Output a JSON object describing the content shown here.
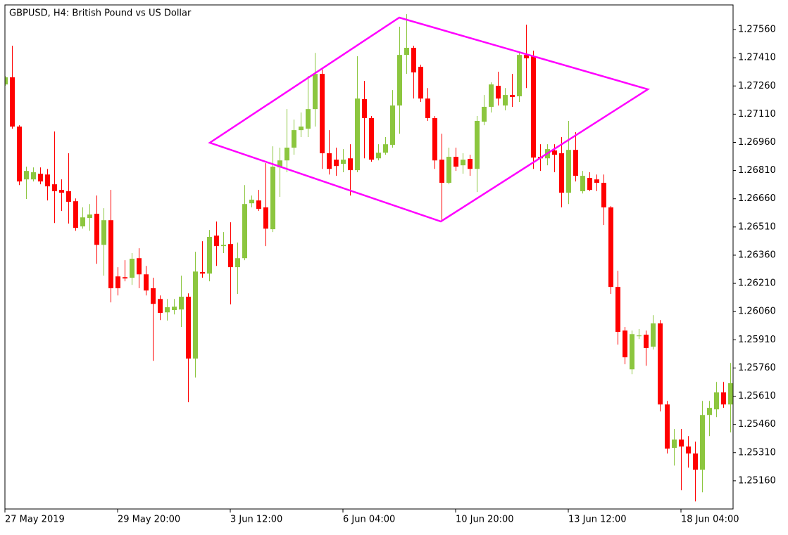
{
  "chart_data": {
    "type": "candlestick",
    "title": "GBPUSD, H4:  British Pound vs US Dollar",
    "up_color": "#8cc63f",
    "down_color": "#ff0000",
    "open": [
      1.27268,
      1.27306,
      1.27044,
      1.26763,
      1.26763,
      1.26793,
      1.26789,
      1.26737,
      1.26707,
      1.267,
      1.26647,
      1.26513,
      1.26558,
      1.2658,
      1.26415,
      1.26546,
      1.26247,
      1.26243,
      1.2624,
      1.26344,
      1.26258,
      1.26184,
      1.26127,
      1.26056,
      1.26068,
      1.26071,
      1.26139,
      1.2581,
      1.2627,
      1.26262,
      1.26464,
      1.26408,
      1.26419,
      1.26296,
      1.26344,
      1.26636,
      1.26651,
      1.26614,
      1.26498,
      1.26827,
      1.26864,
      1.26932,
      1.27025,
      1.27033,
      1.27137,
      1.27324,
      1.26902,
      1.26868,
      1.26846,
      1.26875,
      1.26812,
      1.2719,
      1.27089,
      1.26875,
      1.26905,
      1.26947,
      1.27156,
      1.27425,
      1.27463,
      1.27362,
      1.27193,
      1.27089,
      1.26868,
      1.26745,
      1.26883,
      1.26838,
      1.26872,
      1.26819,
      1.2707,
      1.27149,
      1.27261,
      1.27156,
      1.27212,
      1.27205,
      1.27425,
      1.27418,
      1.26883,
      1.26875,
      1.26917,
      1.26902,
      1.26692,
      1.2692,
      1.267,
      1.26771,
      1.26763,
      1.26745,
      1.26614,
      1.26191,
      1.25959,
      1.25753,
      1.25929,
      1.25937,
      1.25873,
      1.25997,
      1.25566,
      1.25335,
      1.25379,
      1.25342,
      1.25305,
      1.25219,
      1.2551,
      1.2554,
      1.2563,
      1.25566
    ],
    "high": [
      1.27313,
      1.27474,
      1.27051,
      1.26831,
      1.26827,
      1.26827,
      1.26819,
      1.27018,
      1.26763,
      1.26902,
      1.26662,
      1.26614,
      1.26632,
      1.26677,
      1.2661,
      1.26707,
      1.26296,
      1.26333,
      1.26371,
      1.26397,
      1.26303,
      1.2624,
      1.26146,
      1.26127,
      1.26127,
      1.26251,
      1.26157,
      1.26378,
      1.26434,
      1.26494,
      1.26539,
      1.26483,
      1.26535,
      1.26427,
      1.26733,
      1.26677,
      1.26707,
      1.26849,
      1.26939,
      1.26932,
      1.27137,
      1.27081,
      1.27119,
      1.27313,
      1.27436,
      1.2735,
      1.27025,
      1.26932,
      1.26924,
      1.2695,
      1.27418,
      1.27287,
      1.271,
      1.2695,
      1.26988,
      1.27238,
      1.27575,
      1.27642,
      1.27474,
      1.27373,
      1.27249,
      1.271,
      1.27006,
      1.26932,
      1.26932,
      1.26902,
      1.26894,
      1.271,
      1.27212,
      1.27279,
      1.27336,
      1.27249,
      1.27324,
      1.27436,
      1.27586,
      1.27448,
      1.2695,
      1.2695,
      1.2695,
      1.26988,
      1.27074,
      1.27014,
      1.26808,
      1.26801,
      1.26789,
      1.26789,
      1.26621,
      1.26277,
      1.25978,
      1.25959,
      1.25967,
      1.25959,
      1.26041,
      1.26015,
      1.25585,
      1.25436,
      1.25436,
      1.25398,
      1.25368,
      1.25585,
      1.25585,
      1.25686,
      1.25686,
      1.25787
    ],
    "low": [
      1.27261,
      1.27033,
      1.26733,
      1.26659,
      1.26752,
      1.26737,
      1.26651,
      1.26531,
      1.26595,
      1.26528,
      1.2649,
      1.26501,
      1.2649,
      1.26314,
      1.26251,
      1.26109,
      1.26146,
      1.26221,
      1.26202,
      1.26184,
      1.26146,
      1.25798,
      1.26015,
      1.26012,
      1.26045,
      1.25978,
      1.25578,
      1.25709,
      1.2624,
      1.26221,
      1.26303,
      1.26371,
      1.26098,
      1.26154,
      1.26333,
      1.26614,
      1.26595,
      1.26408,
      1.26483,
      1.2667,
      1.26801,
      1.26894,
      1.26988,
      1.26988,
      1.27044,
      1.26819,
      1.26789,
      1.26782,
      1.26801,
      1.26677,
      1.26801,
      1.26875,
      1.26857,
      1.26864,
      1.26894,
      1.26932,
      1.27006,
      1.27324,
      1.27193,
      1.27175,
      1.27074,
      1.26819,
      1.26546,
      1.26737,
      1.26808,
      1.26793,
      1.26782,
      1.26696,
      1.27051,
      1.27119,
      1.27156,
      1.2713,
      1.27149,
      1.27175,
      1.27249,
      1.26819,
      1.26808,
      1.26838,
      1.26801,
      1.26614,
      1.26632,
      1.26752,
      1.26688,
      1.267,
      1.267,
      1.2652,
      1.26154,
      1.25884,
      1.2578,
      1.25727,
      1.25914,
      1.25772,
      1.25858,
      1.25529,
      1.25305,
      1.25241,
      1.2511,
      1.2523,
      1.2505,
      1.25099,
      1.25398,
      1.25499,
      1.25548,
      1.25417
    ],
    "close": [
      1.27306,
      1.27044,
      1.26752,
      1.26808,
      1.26801,
      1.26752,
      1.26726,
      1.267,
      1.26692,
      1.26644,
      1.26505,
      1.26561,
      1.26576,
      1.26415,
      1.26546,
      1.26184,
      1.26184,
      1.26236,
      1.26341,
      1.26258,
      1.26172,
      1.26101,
      1.26053,
      1.26083,
      1.26086,
      1.26139,
      1.2581,
      1.26273,
      1.26262,
      1.26457,
      1.26408,
      1.26415,
      1.26296,
      1.26344,
      1.26632,
      1.26655,
      1.26606,
      1.26501,
      1.26831,
      1.26864,
      1.26932,
      1.27025,
      1.27044,
      1.27137,
      1.27324,
      1.26902,
      1.26819,
      1.26834,
      1.26868,
      1.26812,
      1.27193,
      1.27089,
      1.26868,
      1.26905,
      1.2695,
      1.27156,
      1.27425,
      1.27463,
      1.27332,
      1.27193,
      1.27089,
      1.26864,
      1.26745,
      1.26883,
      1.26831,
      1.26868,
      1.26819,
      1.27074,
      1.27149,
      1.27268,
      1.27193,
      1.27212,
      1.27201,
      1.27425,
      1.27407,
      1.26879,
      1.26875,
      1.26924,
      1.26894,
      1.26692,
      1.2692,
      1.26782,
      1.26782,
      1.26707,
      1.26745,
      1.26614,
      1.26191,
      1.25952,
      1.25817,
      1.2594,
      1.25933,
      1.25866,
      1.25997,
      1.25566,
      1.25331,
      1.25379,
      1.25342,
      1.25305,
      1.25219,
      1.2551,
      1.25548,
      1.2563,
      1.25566,
      1.25679
    ],
    "ylim": [
      1.2501,
      1.27691
    ],
    "yticks": [
      {
        "value": 1.2756,
        "label": "1.27560"
      },
      {
        "value": 1.2741,
        "label": "1.27410"
      },
      {
        "value": 1.2726,
        "label": "1.27260"
      },
      {
        "value": 1.2711,
        "label": "1.27110"
      },
      {
        "value": 1.2696,
        "label": "1.26960"
      },
      {
        "value": 1.2681,
        "label": "1.26810"
      },
      {
        "value": 1.2666,
        "label": "1.26660"
      },
      {
        "value": 1.2651,
        "label": "1.26510"
      },
      {
        "value": 1.2636,
        "label": "1.26360"
      },
      {
        "value": 1.2621,
        "label": "1.26210"
      },
      {
        "value": 1.2606,
        "label": "1.26060"
      },
      {
        "value": 1.2591,
        "label": "1.25910"
      },
      {
        "value": 1.2576,
        "label": "1.25760"
      },
      {
        "value": 1.2561,
        "label": "1.25610"
      },
      {
        "value": 1.2546,
        "label": "1.25460"
      },
      {
        "value": 1.2531,
        "label": "1.25310"
      },
      {
        "value": 1.2516,
        "label": "1.25160"
      }
    ],
    "xticks": [
      {
        "value": 0,
        "label": "27 May 2019"
      },
      {
        "value": 16,
        "label": "29 May 20:00"
      },
      {
        "value": 32,
        "label": "3 Jun 12:00"
      },
      {
        "value": 48,
        "label": "6 Jun 04:00"
      },
      {
        "value": 64,
        "label": "10 Jun 20:00"
      },
      {
        "value": 80,
        "label": "13 Jun 12:00"
      },
      {
        "value": 96,
        "label": "18 Jun 04:00"
      }
    ]
  }
}
